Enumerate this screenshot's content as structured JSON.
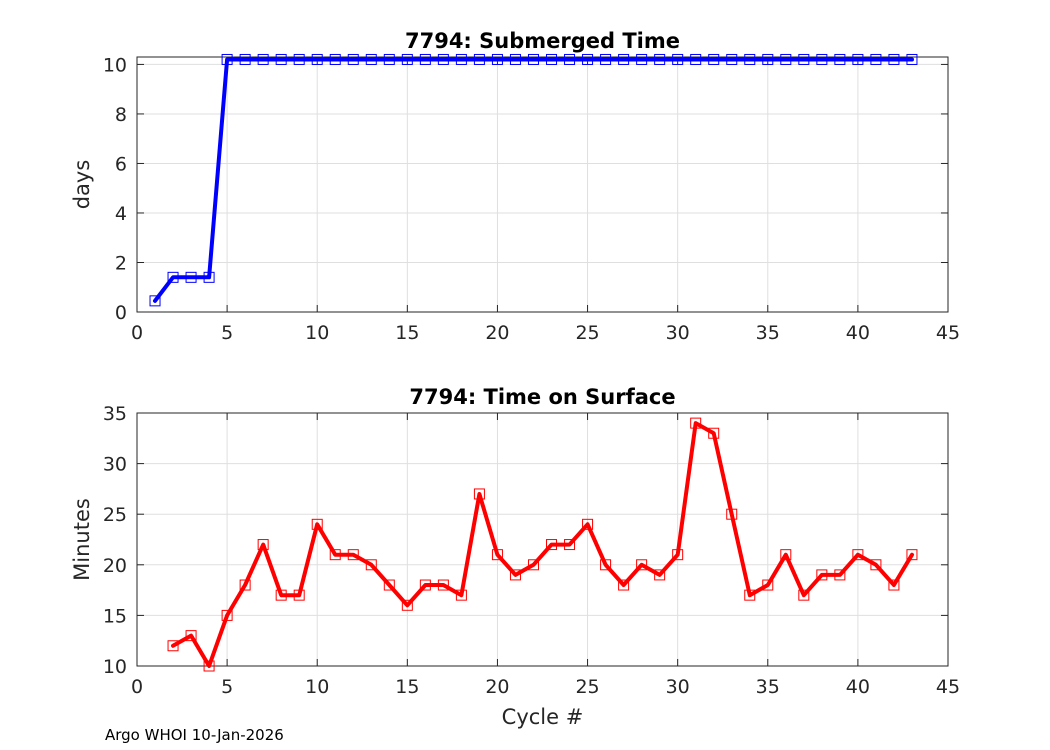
{
  "footer": "Argo WHOI 10-Jan-2026",
  "chart_data": [
    {
      "type": "line",
      "title": "7794: Submerged Time",
      "xlabel": "",
      "ylabel": "days",
      "xlim": [
        0,
        45
      ],
      "ylim": [
        0,
        10.3
      ],
      "xticks": [
        0,
        5,
        10,
        15,
        20,
        25,
        30,
        35,
        40,
        45
      ],
      "yticks": [
        0,
        2,
        4,
        6,
        8,
        10
      ],
      "grid": true,
      "color": "#0000ff",
      "marker": "square",
      "series": [
        {
          "name": "Submerged Time",
          "x": [
            1,
            2,
            3,
            4,
            5,
            6,
            7,
            8,
            9,
            10,
            11,
            12,
            13,
            14,
            15,
            16,
            17,
            18,
            19,
            20,
            21,
            22,
            23,
            24,
            25,
            26,
            27,
            28,
            29,
            30,
            31,
            32,
            33,
            34,
            35,
            36,
            37,
            38,
            39,
            40,
            41,
            42,
            43
          ],
          "values": [
            0.45,
            1.4,
            1.4,
            1.4,
            10.2,
            10.2,
            10.2,
            10.2,
            10.2,
            10.2,
            10.2,
            10.2,
            10.2,
            10.2,
            10.2,
            10.2,
            10.2,
            10.2,
            10.2,
            10.2,
            10.2,
            10.2,
            10.2,
            10.2,
            10.2,
            10.2,
            10.2,
            10.2,
            10.2,
            10.2,
            10.2,
            10.2,
            10.2,
            10.2,
            10.2,
            10.2,
            10.2,
            10.2,
            10.2,
            10.2,
            10.2,
            10.2,
            10.2
          ]
        }
      ]
    },
    {
      "type": "line",
      "title": "7794: Time on Surface",
      "xlabel": "Cycle #",
      "ylabel": "Minutes",
      "xlim": [
        0,
        45
      ],
      "ylim": [
        10,
        35
      ],
      "xticks": [
        0,
        5,
        10,
        15,
        20,
        25,
        30,
        35,
        40,
        45
      ],
      "yticks": [
        10,
        15,
        20,
        25,
        30,
        35
      ],
      "grid": true,
      "color": "#ff0000",
      "marker": "square",
      "series": [
        {
          "name": "Time on Surface",
          "x": [
            2,
            3,
            4,
            5,
            6,
            7,
            8,
            9,
            10,
            11,
            12,
            13,
            14,
            15,
            16,
            17,
            18,
            19,
            20,
            21,
            22,
            23,
            24,
            25,
            26,
            27,
            28,
            29,
            30,
            31,
            32,
            33,
            34,
            35,
            36,
            37,
            38,
            39,
            40,
            41,
            42,
            43
          ],
          "values": [
            12,
            13,
            10,
            15,
            18,
            22,
            17,
            17,
            24,
            21,
            21,
            20,
            18,
            16,
            18,
            18,
            17,
            27,
            21,
            19,
            20,
            22,
            22,
            24,
            20,
            18,
            20,
            19,
            21,
            34,
            33,
            25,
            17,
            18,
            21,
            17,
            19,
            19,
            21,
            20,
            18,
            21
          ]
        }
      ]
    }
  ]
}
